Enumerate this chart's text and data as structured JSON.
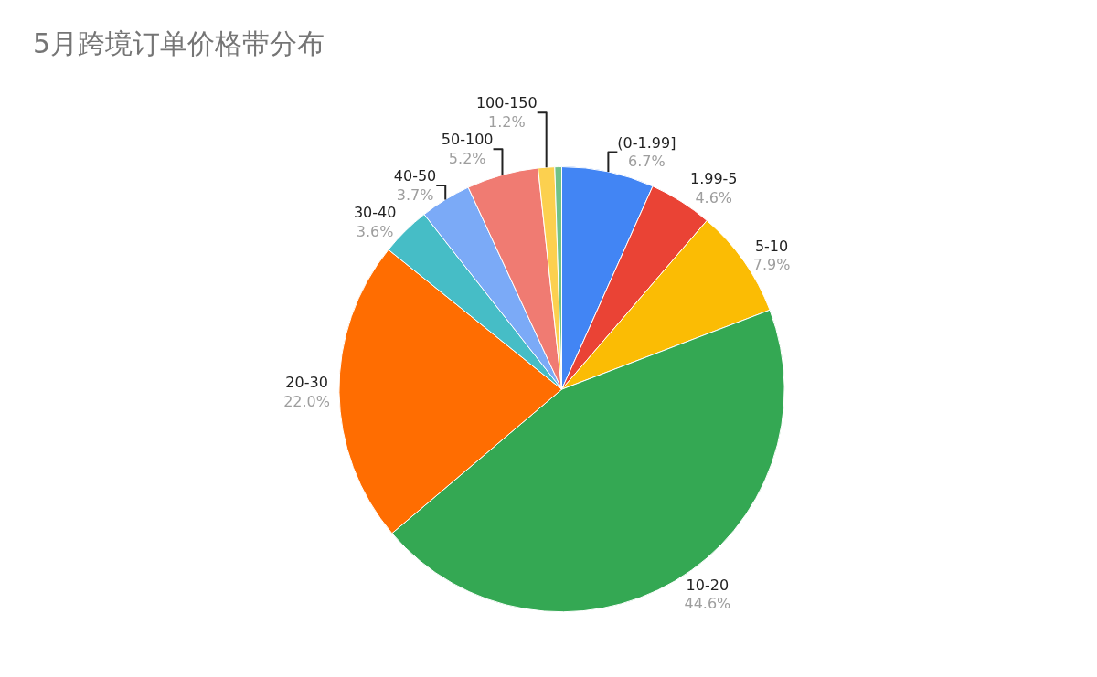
{
  "chart_data": {
    "type": "pie",
    "title": "5月跨境订单价格带分布",
    "categories": [
      "(0-1.99]",
      "1.99-5",
      "5-10",
      "10-20",
      "20-30",
      "30-40",
      "40-50",
      "50-100",
      "100-150",
      null
    ],
    "values": [
      6.7,
      4.6,
      7.9,
      44.6,
      22.0,
      3.6,
      3.7,
      5.2,
      1.2,
      0.5
    ],
    "value_labels": [
      "6.7%",
      "4.6%",
      "7.9%",
      "44.6%",
      "22.0%",
      "3.6%",
      "3.7%",
      "5.2%",
      "1.2%",
      null
    ],
    "colors": [
      "#4285f4",
      "#ea4335",
      "#fbbc04",
      "#34a853",
      "#ff6d01",
      "#46bdc6",
      "#7baaf7",
      "#f07b72",
      "#fcd04f",
      "#71c287"
    ]
  }
}
